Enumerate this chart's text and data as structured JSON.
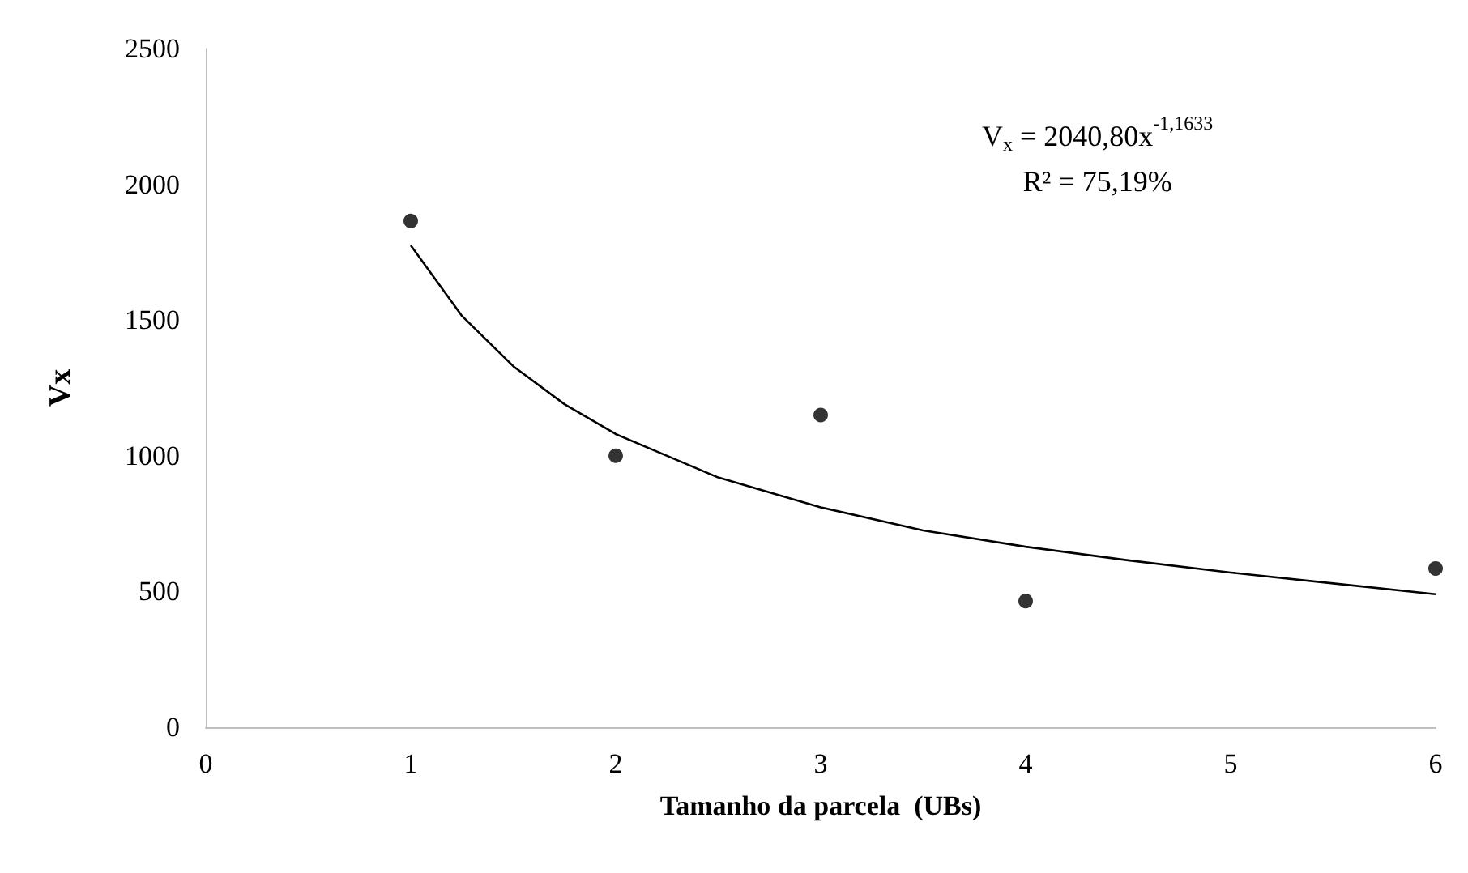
{
  "chart_data": {
    "type": "scatter",
    "xlabel": "Tamanho da parcela  (UBs)",
    "ylabel": "Vx",
    "xlim": [
      0,
      6
    ],
    "xticks": [
      0,
      1,
      2,
      3,
      4,
      5,
      6
    ],
    "ylim": [
      0,
      2500
    ],
    "yticks": [
      0,
      500,
      1000,
      1500,
      2000,
      2500
    ],
    "grid": false,
    "marker": "circle",
    "series": [
      {
        "color": "#000000",
        "x": [
          1,
          2,
          3,
          4,
          6
        ],
        "values": [
          1865,
          1000,
          1150,
          465,
          585
        ]
      },
      {
        "type": "line",
        "color": "#000000",
        "marker": "none",
        "x": [
          1,
          1.25,
          1.5,
          1.75,
          2,
          2.5,
          3,
          3.5,
          4,
          4.5,
          5,
          5.5,
          6
        ],
        "values": [
          1775,
          1515,
          1330,
          1190,
          1080,
          920,
          810,
          725,
          665,
          615,
          570,
          530,
          490
        ]
      }
    ],
    "annotations": [
      "V$_{x}$ = 2040,80x$^{-1,1633}$",
      "R² = 75,19%"
    ]
  }
}
